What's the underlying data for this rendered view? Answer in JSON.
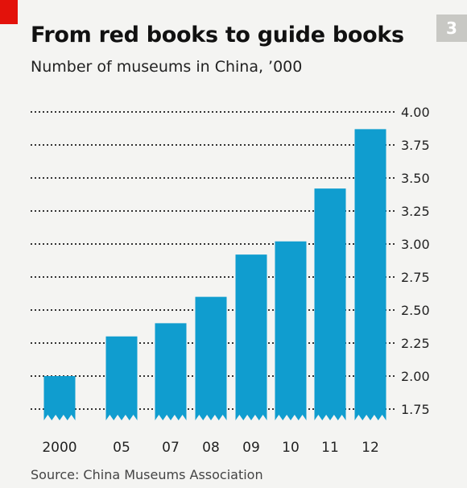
{
  "badge": "3",
  "source": "Source: China Museums Association",
  "colors": {
    "bar": "#109dcf",
    "accent": "#e3120b",
    "grid": "#333333",
    "background": "#f4f4f2"
  },
  "chart_data": {
    "type": "bar",
    "title": "From red books to guide books",
    "subtitle": "Number of museums in China, ’000",
    "categories": [
      "2000",
      "05",
      "07",
      "08",
      "09",
      "10",
      "11",
      "12"
    ],
    "values": [
      2.0,
      2.3,
      2.4,
      2.6,
      2.92,
      3.02,
      3.42,
      3.87
    ],
    "ylim": [
      1.75,
      4.0
    ],
    "yticks": [
      "4.00",
      "3.75",
      "3.50",
      "3.25",
      "3.00",
      "2.75",
      "2.50",
      "2.25",
      "2.00",
      "1.75"
    ],
    "grid": true,
    "y_axis_side": "right",
    "axis_break": "zigzag below 1.75"
  }
}
